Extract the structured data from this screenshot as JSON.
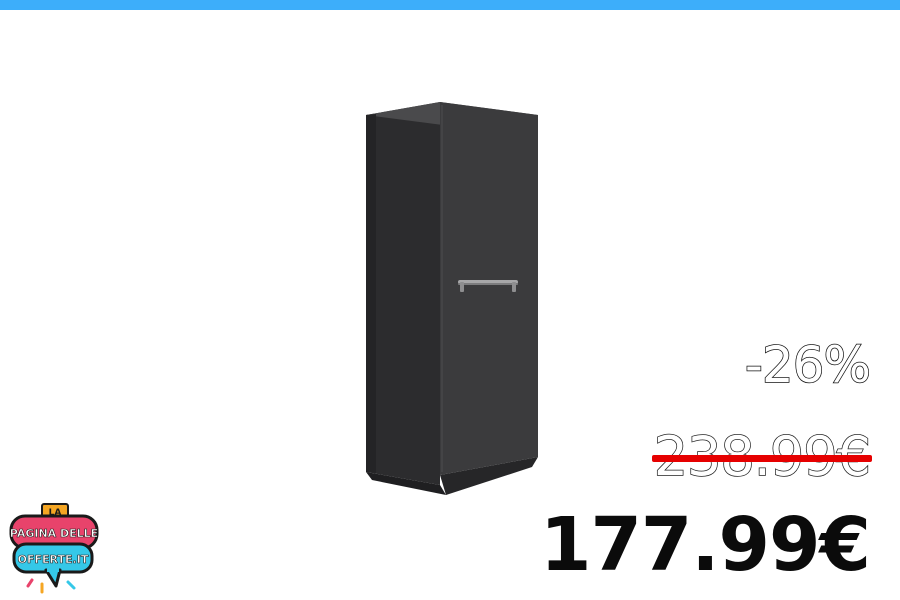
{
  "colors": {
    "top_bar": "#3daefa",
    "strike": "#e60000",
    "logo_pink": "#e8436b",
    "logo_cyan": "#35c8e8",
    "logo_orange": "#f5a623",
    "cabinet": "#3b3b3d"
  },
  "product": {
    "icon": "tall-cabinet-image"
  },
  "pricing": {
    "discount": "-26%",
    "old_price": "238.99€",
    "new_price": "177.99€"
  },
  "logo": {
    "line1": "LA",
    "line2": "PAGINA DELLE",
    "line3": "OFFERTE.IT"
  }
}
